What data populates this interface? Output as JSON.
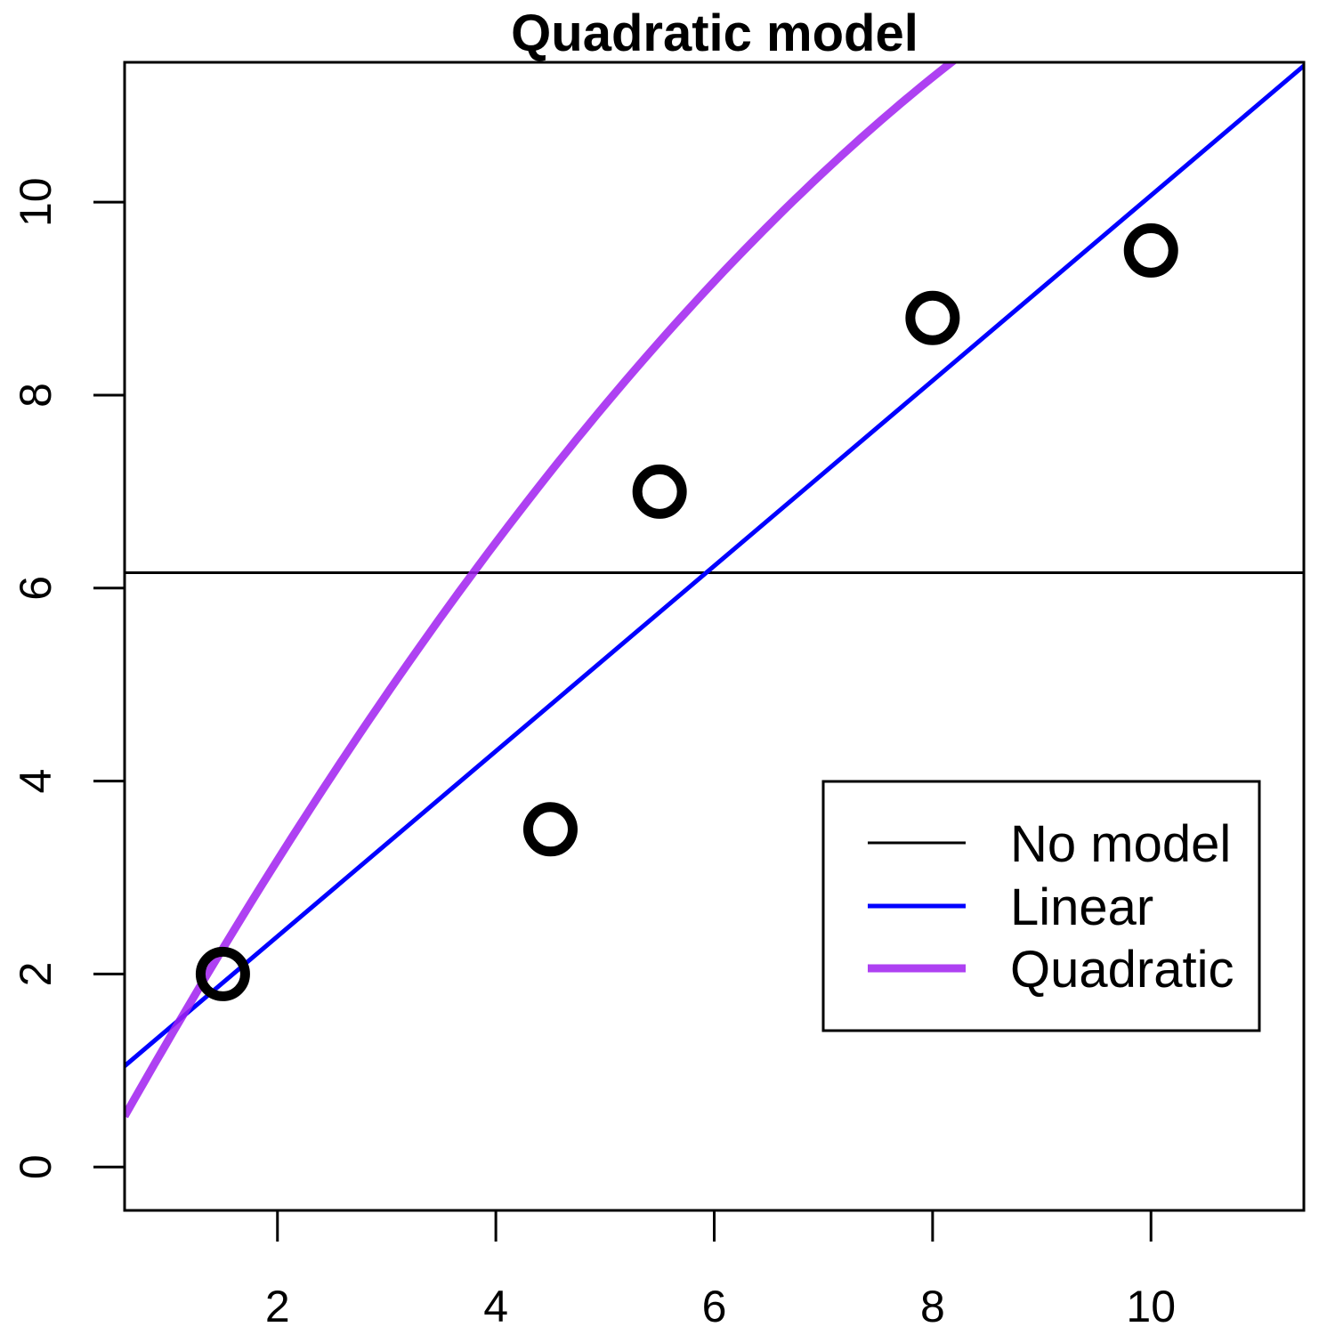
{
  "chart_data": {
    "type": "scatter",
    "title": "Quadratic model",
    "xlabel": "",
    "ylabel": "",
    "xlim": [
      0.6,
      11.4
    ],
    "ylim": [
      -0.45,
      11.45
    ],
    "x_ticks": [
      2,
      4,
      6,
      8,
      10
    ],
    "y_ticks": [
      0,
      2,
      4,
      6,
      8,
      10
    ],
    "grid": false,
    "points": [
      {
        "x": 1.5,
        "y": 2.0
      },
      {
        "x": 4.5,
        "y": 3.5
      },
      {
        "x": 5.5,
        "y": 7.0
      },
      {
        "x": 8.0,
        "y": 8.8
      },
      {
        "x": 10.0,
        "y": 9.5
      }
    ],
    "lines": [
      {
        "name": "No model",
        "kind": "horizontal",
        "y": 6.16,
        "color": "#000000"
      },
      {
        "name": "Linear",
        "kind": "linear",
        "intercept": 0.47,
        "slope": 0.96,
        "color": "#0000ff"
      },
      {
        "name": "Quadratic",
        "kind": "quadratic",
        "a": -0.7,
        "b": 2.087,
        "c": -0.07345,
        "color": "#a020f0"
      }
    ],
    "legend": {
      "position": "bottom-right",
      "entries": [
        "No model",
        "Linear",
        "Quadratic"
      ]
    }
  }
}
